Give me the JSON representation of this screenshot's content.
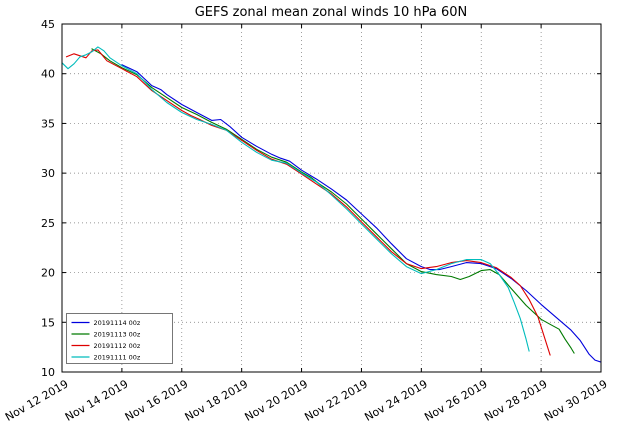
{
  "chart_data": {
    "type": "line",
    "title": "GEFS zonal mean zonal winds 10 hPa 60N",
    "xlabel": "",
    "ylabel": "",
    "grid": true,
    "legend_position": "lower left",
    "x_axis": {
      "unit": "date",
      "range_days": [
        0,
        18
      ],
      "tick_positions": [
        0,
        2,
        4,
        6,
        8,
        10,
        12,
        14,
        16,
        18
      ],
      "tick_labels": [
        "Nov 12 2019",
        "Nov 14 2019",
        "Nov 16 2019",
        "Nov 18 2019",
        "Nov 20 2019",
        "Nov 22 2019",
        "Nov 24 2019",
        "Nov 26 2019",
        "Nov 28 2019",
        "Nov 30 2019"
      ]
    },
    "y_axis": {
      "range": [
        10,
        45
      ],
      "tick_positions": [
        10,
        15,
        20,
        25,
        30,
        35,
        40,
        45
      ],
      "tick_labels": [
        "10",
        "15",
        "20",
        "25",
        "30",
        "35",
        "40",
        "45"
      ]
    },
    "series": [
      {
        "name": "20191114 00z",
        "color": "#0000dd",
        "points": [
          [
            2,
            40.9
          ],
          [
            2.5,
            40.2
          ],
          [
            3,
            38.8
          ],
          [
            3.3,
            38.4
          ],
          [
            3.5,
            37.9
          ],
          [
            4,
            36.9
          ],
          [
            4.5,
            36.1
          ],
          [
            5,
            35.3
          ],
          [
            5.3,
            35.4
          ],
          [
            5.6,
            34.7
          ],
          [
            6,
            33.6
          ],
          [
            6.5,
            32.7
          ],
          [
            7,
            31.9
          ],
          [
            7.3,
            31.5
          ],
          [
            7.6,
            31.2
          ],
          [
            8,
            30.3
          ],
          [
            8.5,
            29.4
          ],
          [
            9,
            28.4
          ],
          [
            9.5,
            27.3
          ],
          [
            10,
            25.9
          ],
          [
            10.5,
            24.5
          ],
          [
            11,
            22.9
          ],
          [
            11.5,
            21.4
          ],
          [
            12,
            20.6
          ],
          [
            12.3,
            20.3
          ],
          [
            12.6,
            20.3
          ],
          [
            13,
            20.6
          ],
          [
            13.5,
            21.0
          ],
          [
            14,
            20.9
          ],
          [
            14.5,
            20.4
          ],
          [
            15,
            19.4
          ],
          [
            15.5,
            18.2
          ],
          [
            16,
            16.8
          ],
          [
            16.5,
            15.5
          ],
          [
            17,
            14.2
          ],
          [
            17.3,
            13.2
          ],
          [
            17.6,
            11.8
          ],
          [
            17.8,
            11.2
          ],
          [
            18,
            11.0
          ]
        ]
      },
      {
        "name": "20191113 00z",
        "color": "#007a00",
        "points": [
          [
            1,
            42.5
          ],
          [
            1.3,
            42.0
          ],
          [
            1.6,
            41.3
          ],
          [
            2,
            40.6
          ],
          [
            2.5,
            39.9
          ],
          [
            3,
            38.6
          ],
          [
            3.5,
            37.6
          ],
          [
            4,
            36.6
          ],
          [
            4.5,
            35.9
          ],
          [
            5,
            35.1
          ],
          [
            5.5,
            34.4
          ],
          [
            6,
            33.4
          ],
          [
            6.5,
            32.4
          ],
          [
            7,
            31.6
          ],
          [
            7.5,
            31.1
          ],
          [
            8,
            30.1
          ],
          [
            8.3,
            29.6
          ],
          [
            8.6,
            28.9
          ],
          [
            9,
            28.1
          ],
          [
            9.5,
            26.9
          ],
          [
            10,
            25.4
          ],
          [
            10.5,
            23.9
          ],
          [
            11,
            22.4
          ],
          [
            11.5,
            20.9
          ],
          [
            12,
            20.1
          ],
          [
            12.5,
            19.8
          ],
          [
            13,
            19.6
          ],
          [
            13.3,
            19.3
          ],
          [
            13.6,
            19.6
          ],
          [
            14,
            20.2
          ],
          [
            14.3,
            20.3
          ],
          [
            14.6,
            19.8
          ],
          [
            15,
            18.4
          ],
          [
            15.5,
            16.7
          ],
          [
            16,
            15.3
          ],
          [
            16.3,
            14.8
          ],
          [
            16.6,
            14.3
          ],
          [
            16.8,
            13.3
          ],
          [
            17,
            12.4
          ],
          [
            17.1,
            11.9
          ]
        ]
      },
      {
        "name": "20191112 00z",
        "color": "#dd0000",
        "points": [
          [
            0.15,
            41.7
          ],
          [
            0.4,
            42.0
          ],
          [
            0.6,
            41.8
          ],
          [
            0.8,
            41.6
          ],
          [
            1,
            42.3
          ],
          [
            1.2,
            42.4
          ],
          [
            1.5,
            41.3
          ],
          [
            2,
            40.5
          ],
          [
            2.5,
            39.7
          ],
          [
            3,
            38.3
          ],
          [
            3.5,
            37.3
          ],
          [
            4,
            36.3
          ],
          [
            4.3,
            35.8
          ],
          [
            4.6,
            35.4
          ],
          [
            5,
            34.8
          ],
          [
            5.5,
            34.3
          ],
          [
            6,
            33.3
          ],
          [
            6.5,
            32.3
          ],
          [
            7,
            31.4
          ],
          [
            7.5,
            30.9
          ],
          [
            8,
            29.9
          ],
          [
            8.5,
            28.9
          ],
          [
            9,
            27.9
          ],
          [
            9.5,
            26.6
          ],
          [
            10,
            25.1
          ],
          [
            10.5,
            23.6
          ],
          [
            11,
            22.1
          ],
          [
            11.5,
            20.9
          ],
          [
            12,
            20.4
          ],
          [
            12.5,
            20.6
          ],
          [
            13,
            21.0
          ],
          [
            13.5,
            21.2
          ],
          [
            14,
            21.0
          ],
          [
            14.5,
            20.5
          ],
          [
            15,
            19.5
          ],
          [
            15.3,
            18.7
          ],
          [
            15.6,
            17.3
          ],
          [
            15.9,
            15.5
          ],
          [
            16.1,
            13.6
          ],
          [
            16.3,
            11.7
          ]
        ]
      },
      {
        "name": "20191111 00z",
        "color": "#00bcbc",
        "points": [
          [
            0,
            41.1
          ],
          [
            0.2,
            40.5
          ],
          [
            0.4,
            41.0
          ],
          [
            0.6,
            41.7
          ],
          [
            0.8,
            41.9
          ],
          [
            1,
            42.2
          ],
          [
            1.2,
            42.7
          ],
          [
            1.4,
            42.3
          ],
          [
            1.6,
            41.6
          ],
          [
            2,
            40.8
          ],
          [
            2.5,
            40.0
          ],
          [
            3,
            38.4
          ],
          [
            3.5,
            37.1
          ],
          [
            4,
            36.1
          ],
          [
            4.5,
            35.4
          ],
          [
            5,
            34.9
          ],
          [
            5.5,
            34.3
          ],
          [
            6,
            33.1
          ],
          [
            6.5,
            32.1
          ],
          [
            7,
            31.3
          ],
          [
            7.5,
            31.0
          ],
          [
            8,
            30.0
          ],
          [
            8.5,
            29.1
          ],
          [
            9,
            27.8
          ],
          [
            9.5,
            26.4
          ],
          [
            10,
            24.9
          ],
          [
            10.5,
            23.4
          ],
          [
            11,
            21.9
          ],
          [
            11.5,
            20.6
          ],
          [
            12,
            19.9
          ],
          [
            12.5,
            20.3
          ],
          [
            13,
            20.9
          ],
          [
            13.5,
            21.3
          ],
          [
            14,
            21.3
          ],
          [
            14.3,
            20.9
          ],
          [
            14.6,
            19.8
          ],
          [
            14.9,
            18.5
          ],
          [
            15.1,
            17.0
          ],
          [
            15.3,
            15.4
          ],
          [
            15.5,
            13.3
          ],
          [
            15.6,
            12.1
          ]
        ]
      }
    ]
  }
}
